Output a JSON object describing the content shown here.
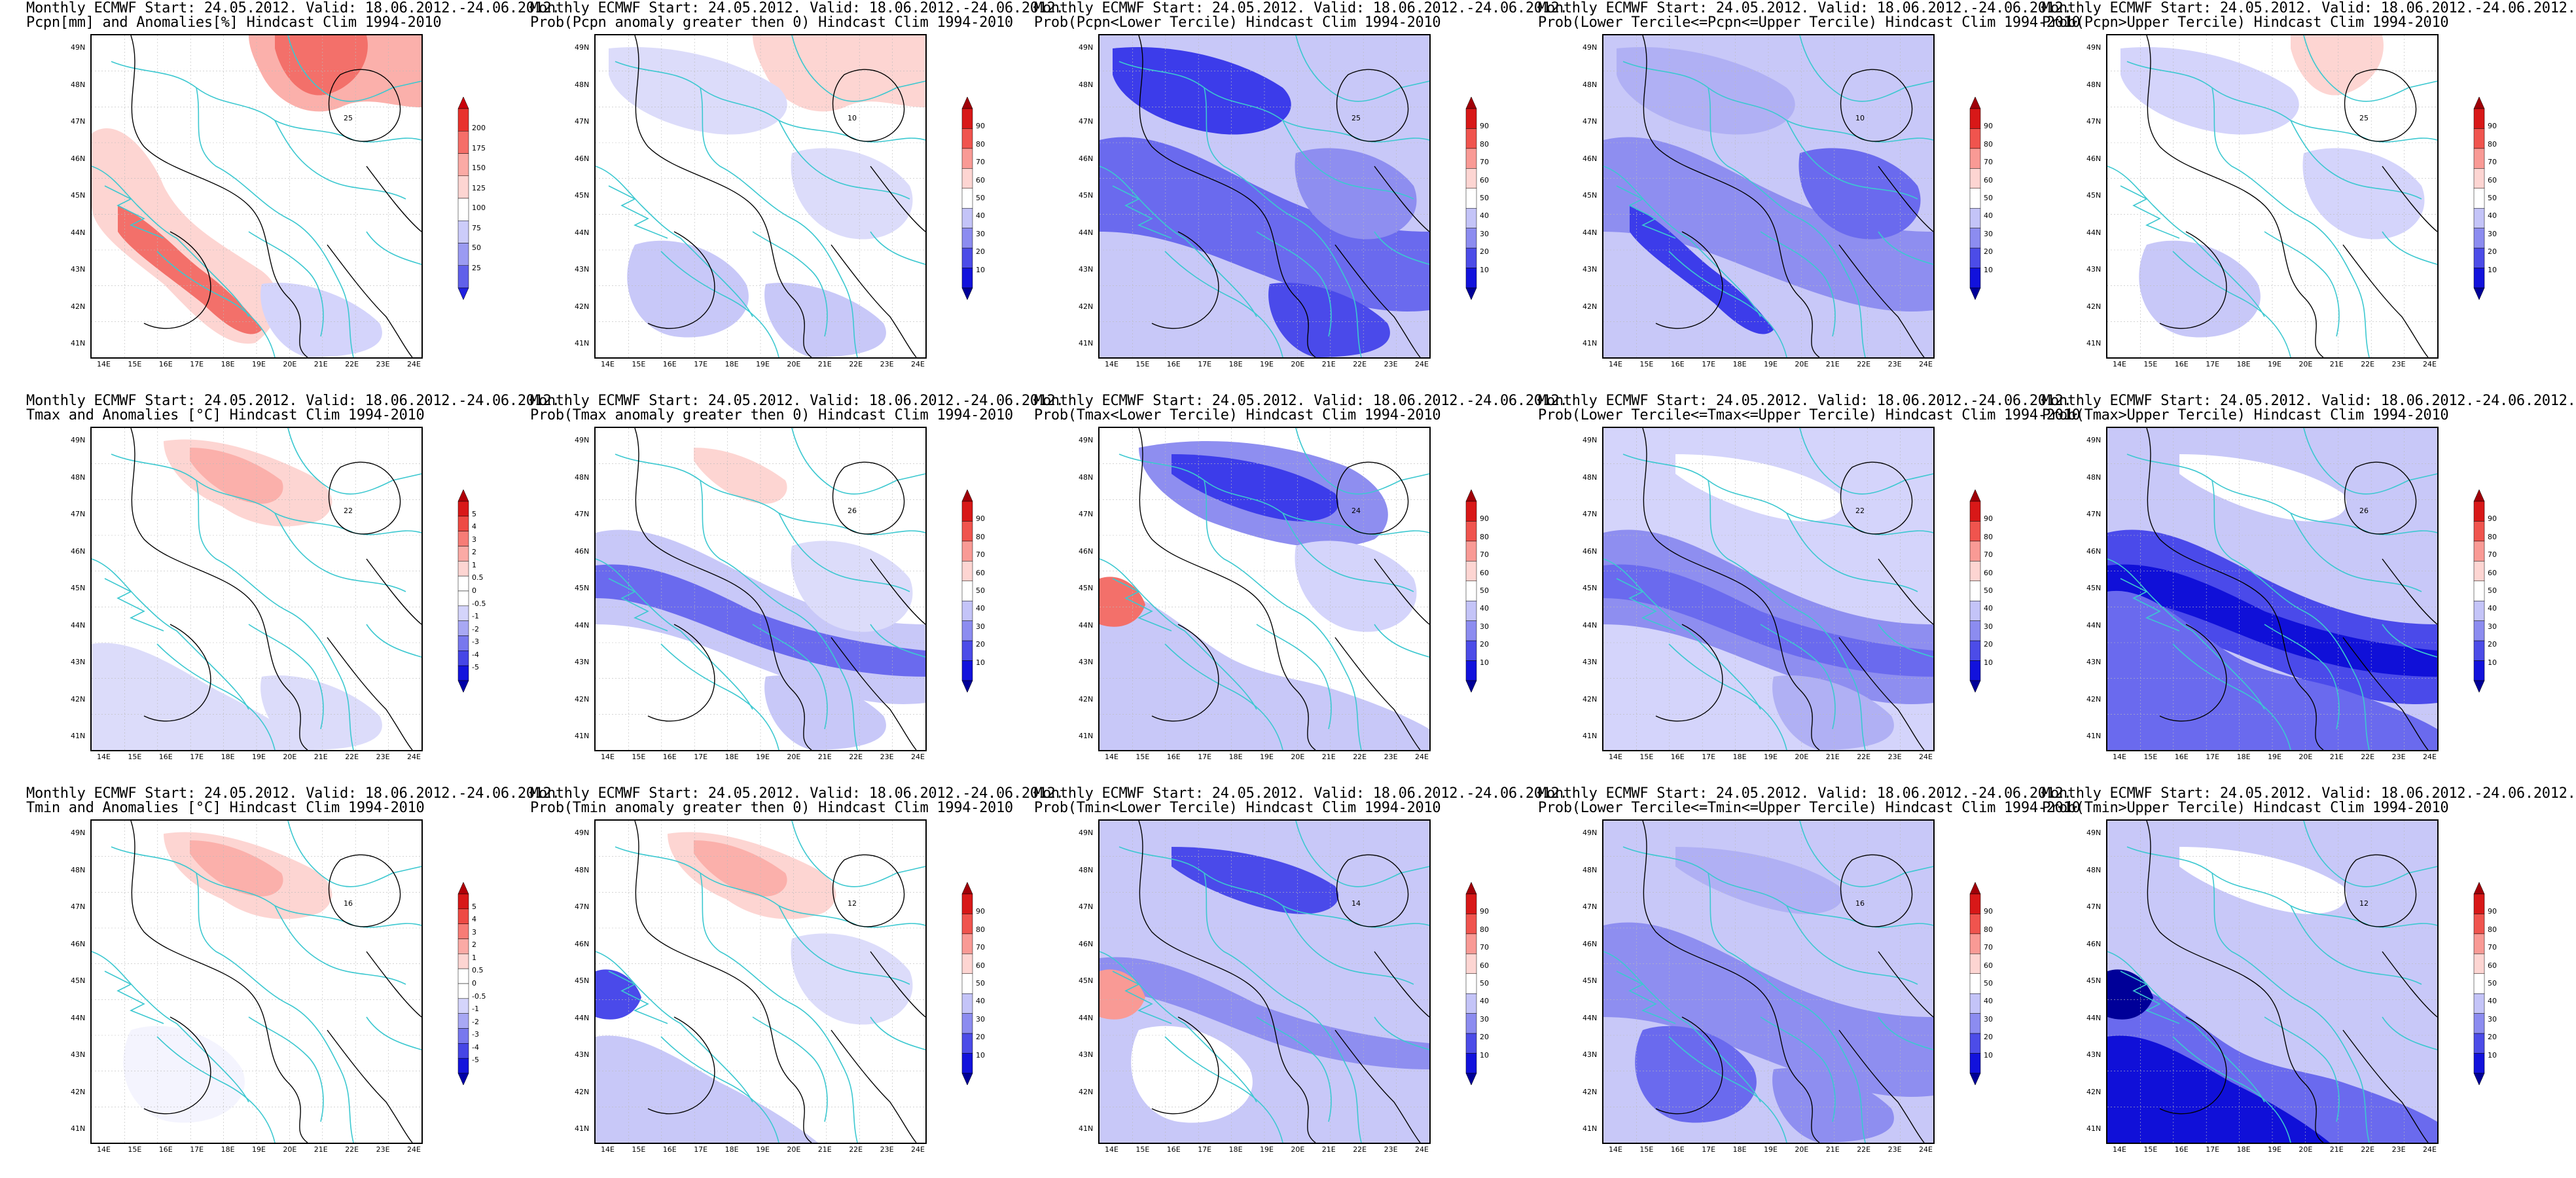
{
  "rows": [
    {
      "variable": "Pcpn",
      "panels": [
        {
          "title1": "Monthly ECMWF Start: 24.05.2012. Valid: 18.06.2012.-24.06.2012.",
          "title2": "Pcpn[mm] and Anomalies[%] Hindcast Clim 1994-2010",
          "colorbar": "anom_pcpn",
          "scheme": "pcpn_anom"
        },
        {
          "title1": "Monthly ECMWF Start: 24.05.2012. Valid: 18.06.2012.-24.06.2012.",
          "title2": "Prob(Pcpn anomaly greater then 0) Hindcast Clim 1994-2010",
          "colorbar": "prob",
          "scheme": "prob_gt0_p"
        },
        {
          "title1": "Monthly ECMWF Start: 24.05.2012. Valid: 18.06.2012.-24.06.2012.",
          "title2": "Prob(Pcpn<Lower Tercile) Hindcast Clim 1994-2010",
          "colorbar": "prob",
          "scheme": "lower_p"
        },
        {
          "title1": "Monthly ECMWF Start: 24.05.2012. Valid: 18.06.2012.-24.06.2012.",
          "title2": "Prob(Lower Tercile<=Pcpn<=Upper Tercile) Hindcast Clim 1994-2010",
          "colorbar": "prob",
          "scheme": "middle_p"
        },
        {
          "title1": "Monthly ECMWF Start: 24.05.2012. Valid: 18.06.2012.-24.06.2012.",
          "title2": "Prob(Pcpn>Upper Tercile) Hindcast Clim 1994-2010",
          "colorbar": "prob",
          "scheme": "upper_p"
        }
      ],
      "contour_labels": [
        "25",
        "10",
        "25",
        "10",
        "25"
      ]
    },
    {
      "variable": "Tmax",
      "panels": [
        {
          "title1": "Monthly ECMWF Start: 24.05.2012. Valid: 18.06.2012.-24.06.2012.",
          "title2": "Tmax and Anomalies [°C] Hindcast Clim 1994-2010",
          "colorbar": "anom_t",
          "scheme": "tmax_anom"
        },
        {
          "title1": "Monthly ECMWF Start: 24.05.2012. Valid: 18.06.2012.-24.06.2012.",
          "title2": "Prob(Tmax anomaly greater then 0) Hindcast Clim 1994-2010",
          "colorbar": "prob",
          "scheme": "prob_gt0_tx"
        },
        {
          "title1": "Monthly ECMWF Start: 24.05.2012. Valid: 18.06.2012.-24.06.2012.",
          "title2": "Prob(Tmax<Lower Tercile) Hindcast Clim 1994-2010",
          "colorbar": "prob",
          "scheme": "lower_tx"
        },
        {
          "title1": "Monthly ECMWF Start: 24.05.2012. Valid: 18.06.2012.-24.06.2012.",
          "title2": "Prob(Lower Tercile<=Tmax<=Upper Tercile) Hindcast Clim 1994-2010",
          "colorbar": "prob",
          "scheme": "middle_tx"
        },
        {
          "title1": "Monthly ECMWF Start: 24.05.2012. Valid: 18.06.2012.-24.06.2012.",
          "title2": "Prob(Tmax>Upper Tercile) Hindcast Clim 1994-2010",
          "colorbar": "prob",
          "scheme": "upper_tx"
        }
      ],
      "contour_labels": [
        "22",
        "26",
        "24",
        "22",
        "26"
      ]
    },
    {
      "variable": "Tmin",
      "panels": [
        {
          "title1": "Monthly ECMWF Start: 24.05.2012. Valid: 18.06.2012.-24.06.2012.",
          "title2": "Tmin and Anomalies [°C] Hindcast Clim 1994-2010",
          "colorbar": "anom_t",
          "scheme": "tmin_anom"
        },
        {
          "title1": "Monthly ECMWF Start: 24.05.2012. Valid: 18.06.2012.-24.06.2012.",
          "title2": "Prob(Tmin anomaly greater then 0) Hindcast Clim 1994-2010",
          "colorbar": "prob",
          "scheme": "prob_gt0_tn"
        },
        {
          "title1": "Monthly ECMWF Start: 24.05.2012. Valid: 18.06.2012.-24.06.2012.",
          "title2": "Prob(Tmin<Lower Tercile) Hindcast Clim 1994-2010",
          "colorbar": "prob",
          "scheme": "lower_tn"
        },
        {
          "title1": "Monthly ECMWF Start: 24.05.2012. Valid: 18.06.2012.-24.06.2012.",
          "title2": "Prob(Lower Tercile<=Tmin<=Upper Tercile) Hindcast Clim 1994-2010",
          "colorbar": "prob",
          "scheme": "middle_tn"
        },
        {
          "title1": "Monthly ECMWF Start: 24.05.2012. Valid: 18.06.2012.-24.06.2012.",
          "title2": "Prob(Tmin>Upper Tercile) Hindcast Clim 1994-2010",
          "colorbar": "prob",
          "scheme": "upper_tn"
        }
      ],
      "contour_labels": [
        "16",
        "12",
        "14",
        "16",
        "12"
      ]
    }
  ],
  "axes": {
    "lat_labels": [
      "49N",
      "48N",
      "47N",
      "46N",
      "45N",
      "44N",
      "43N",
      "42N",
      "41N"
    ],
    "lon_labels": [
      "14E",
      "15E",
      "16E",
      "17E",
      "18E",
      "19E",
      "20E",
      "21E",
      "22E",
      "23E",
      "24E"
    ]
  },
  "colorbars": {
    "anom_pcpn": {
      "labels": [
        "200",
        "175",
        "150",
        "125",
        "100",
        "75",
        "50",
        "25"
      ],
      "colors": [
        "#c8000a",
        "#e8322d",
        "#f56e68",
        "#fbaaa5",
        "#fdd5d2",
        "#ffffff",
        "#ccccfa",
        "#9b9bf2",
        "#6060ea",
        "#2020e0"
      ]
    },
    "anom_t": {
      "labels": [
        "5",
        "4",
        "3",
        "2",
        "1",
        "0.5",
        "0",
        "-0.5",
        "-1",
        "-2",
        "-3",
        "-4",
        "-5"
      ],
      "colors": [
        "#b00008",
        "#d81818",
        "#ee4a44",
        "#f77c76",
        "#fbaaa5",
        "#fdd5d2",
        "#ffffff",
        "#ffffff",
        "#d4d4fb",
        "#a8a8f4",
        "#7878ee",
        "#4646e6",
        "#1414dc",
        "#0000a8"
      ]
    },
    "prob": {
      "labels": [
        "90",
        "80",
        "70",
        "60",
        "50",
        "40",
        "30",
        "20",
        "10"
      ],
      "colors": [
        "#a00008",
        "#d81818",
        "#f0544e",
        "#f99a95",
        "#fdd5d2",
        "#ffffff",
        "#c4c4f8",
        "#8c8cf0",
        "#4c4ce8",
        "#1212dc",
        "#000098"
      ]
    }
  },
  "palette": {
    "light_blue": "#c8c8f8",
    "mid_blue": "#8e8ef0",
    "dark_blue": "#3c3cea",
    "navy": "#1010d8",
    "light_red": "#fbb0ab",
    "mid_red": "#f3706a",
    "coast": "#3cc8d0",
    "contour": "#000000"
  }
}
